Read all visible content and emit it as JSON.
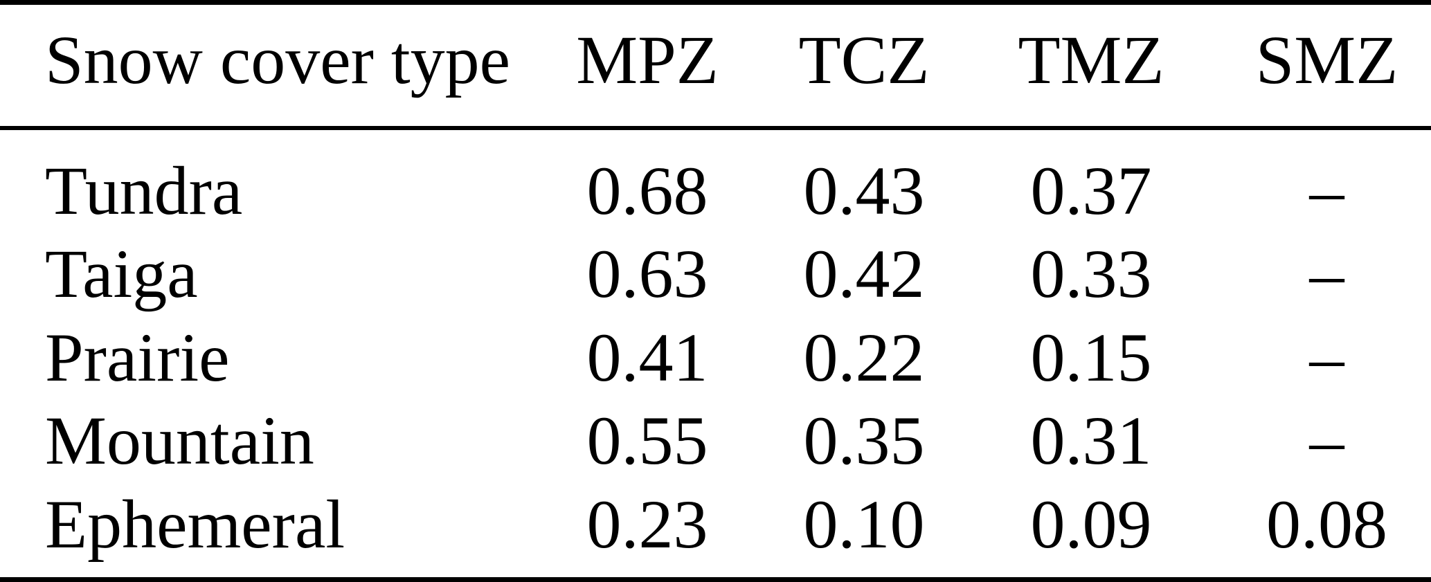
{
  "figure": {
    "type": "table",
    "columns": [
      "Snow cover type",
      "MPZ",
      "TCZ",
      "TMZ",
      "SMZ"
    ],
    "rows": [
      {
        "label": "Tundra",
        "values": [
          "0.68",
          "0.43",
          "0.37",
          "–"
        ]
      },
      {
        "label": "Taiga",
        "values": [
          "0.63",
          "0.42",
          "0.33",
          "–"
        ]
      },
      {
        "label": "Prairie",
        "values": [
          "0.41",
          "0.22",
          "0.15",
          "–"
        ]
      },
      {
        "label": "Mountain",
        "values": [
          "0.55",
          "0.35",
          "0.31",
          "–"
        ]
      },
      {
        "label": "Ephemeral",
        "values": [
          "0.23",
          "0.10",
          "0.09",
          "0.08"
        ]
      }
    ],
    "missing_value_symbol": "–",
    "colors": {
      "text": "#000000",
      "rules": "#000000",
      "background": "#ffffff"
    }
  },
  "chart_data": {
    "type": "table",
    "columns": [
      "Snow cover type",
      "MPZ",
      "TCZ",
      "TMZ",
      "SMZ"
    ],
    "rows": [
      [
        "Tundra",
        0.68,
        0.43,
        0.37,
        null
      ],
      [
        "Taiga",
        0.63,
        0.42,
        0.33,
        null
      ],
      [
        "Prairie",
        0.41,
        0.22,
        0.15,
        null
      ],
      [
        "Mountain",
        0.55,
        0.35,
        0.31,
        null
      ],
      [
        "Ephemeral",
        0.23,
        0.1,
        0.09,
        0.08
      ]
    ]
  }
}
